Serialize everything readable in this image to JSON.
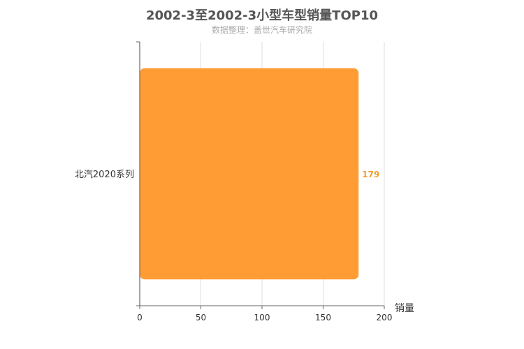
{
  "chart_data": {
    "type": "bar",
    "orientation": "horizontal",
    "title": "2002-3至2002-3小型车型销量TOP10",
    "subtitle": "数据整理：盖世汽车研究院",
    "categories": [
      "北汽2020系列"
    ],
    "values": [
      179
    ],
    "xlabel": "销量",
    "ylabel": "",
    "xlim": [
      0,
      200
    ],
    "xticks": [
      0,
      50,
      100,
      150,
      200
    ],
    "grid": true,
    "legend": "none",
    "bar_color": "#ff9c33",
    "label_color": "#f0a030"
  }
}
